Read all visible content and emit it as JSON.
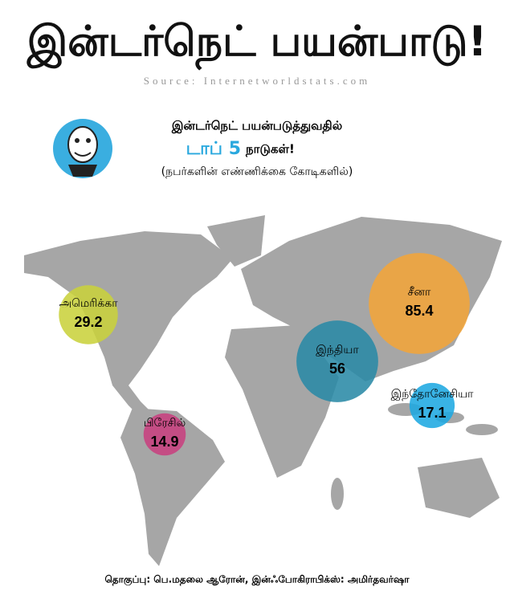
{
  "title": "இன்டர்நெட் பயன்பாடு!",
  "source": "Source: Internetworldstats.com",
  "credit": "தொகுப்பு: பெ.மதலை ஆரோன், இன்ஃபோகிராபிக்ஸ்: அமிர்தவர்ஷா",
  "chart_data": {
    "type": "bubble-map",
    "subtitle": "இன்டர்நெட் பயன்படுத்துவதில்",
    "subtitle_highlight": "டாப் 5",
    "subtitle_rest": "நாடுகள்!",
    "note": "(நபர்களின் எண்ணிக்கை கோடிகளில்)",
    "categories": [
      "அமெரிக்கா",
      "பிரேசில்",
      "இந்தியா",
      "சீனா",
      "இந்தோனேசியா"
    ],
    "values": [
      29.2,
      14.9,
      56,
      85.4,
      17.1
    ],
    "colors": [
      "#c9d13c",
      "#c8417f",
      "#2a8aa6",
      "#f2a53a",
      "#1ea9e1"
    ]
  }
}
